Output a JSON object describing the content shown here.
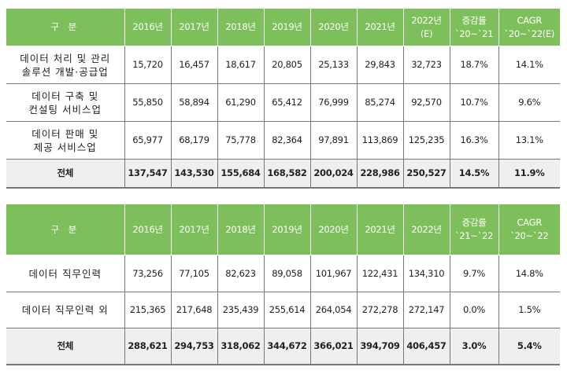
{
  "table1": {
    "headers": [
      "구 분",
      "2016년",
      "2017년",
      "2018년",
      "2019년",
      "2020년",
      "2021년",
      "2022년\n(E)",
      "증감률\n`20~`21",
      "CAGR\n`20~`22(E)"
    ],
    "rows": [
      [
        "데이터 처리 및 관리\n솔루션 개발·공급업",
        "15,720",
        "16,457",
        "18,617",
        "20,805",
        "25,133",
        "29,843",
        "32,723",
        "18.7%",
        "14.1%"
      ],
      [
        "데이터 구축 및\n컨설팅 서비스업",
        "55,850",
        "58,894",
        "61,290",
        "65,412",
        "76,999",
        "85,274",
        "92,570",
        "10.7%",
        "9.6%"
      ],
      [
        "데이터 판매 및\n제공 서비스업",
        "65,977",
        "68,179",
        "75,778",
        "82,364",
        "97,891",
        "113,869",
        "125,235",
        "16.3%",
        "13.1%"
      ],
      [
        "전체",
        "137,547",
        "143,530",
        "155,684",
        "168,582",
        "200,024",
        "228,986",
        "250,527",
        "14.5%",
        "11.9%"
      ]
    ]
  },
  "table2": {
    "headers": [
      "구 분",
      "2016년",
      "2017년",
      "2018년",
      "2019년",
      "2020년",
      "2021년",
      "2022년",
      "증감률\n`21~`22",
      "CAGR\n`20~`22"
    ],
    "rows": [
      [
        "데이터 직무인력",
        "73,256",
        "77,105",
        "82,623",
        "89,058",
        "101,967",
        "122,431",
        "134,310",
        "9.7%",
        "14.8%"
      ],
      [
        "데이터 직무인력 외",
        "215,365",
        "217,648",
        "235,439",
        "255,614",
        "264,054",
        "272,278",
        "272,147",
        "0.0%",
        "1.5%"
      ],
      [
        "전체",
        "288,621",
        "294,753",
        "318,062",
        "344,672",
        "366,021",
        "394,709",
        "406,457",
        "3.0%",
        "5.4%"
      ]
    ]
  },
  "colors": {
    "header_bg": "#7dbf5a",
    "total_bg": "#efefef"
  }
}
